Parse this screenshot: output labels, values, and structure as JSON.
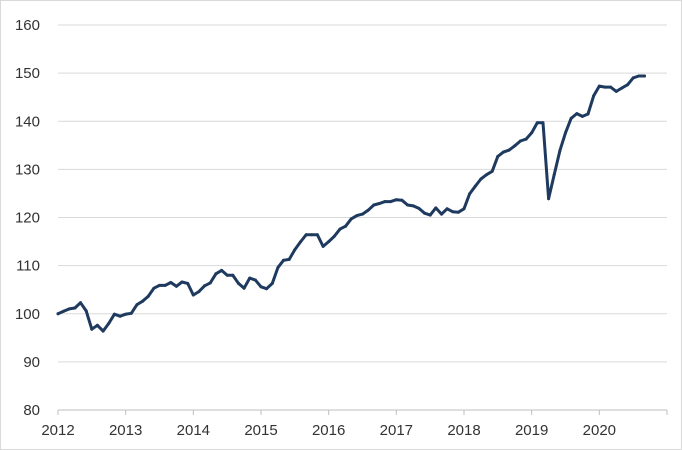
{
  "chart_data": {
    "type": "line",
    "title": "",
    "xlabel": "",
    "ylabel": "",
    "ylim": [
      80,
      160
    ],
    "xlim": [
      2012,
      2021
    ],
    "y_ticks": [
      80,
      90,
      100,
      110,
      120,
      130,
      140,
      150,
      160
    ],
    "x_tick_labels": [
      "2012",
      "2013",
      "2014",
      "2015",
      "2016",
      "2017",
      "2018",
      "2019",
      "2020"
    ],
    "grid": "horizontal",
    "legend": "none",
    "colors": {
      "line": "#1f3a5f",
      "grid": "#d9d9d9",
      "axis": "#bfbfbf"
    },
    "series": [
      {
        "x": [
          2012.0,
          2012.083,
          2012.167,
          2012.25,
          2012.333,
          2012.417,
          2012.5,
          2012.583,
          2012.667,
          2012.75,
          2012.833,
          2012.917,
          2013.0,
          2013.083,
          2013.167,
          2013.25,
          2013.333,
          2013.417,
          2013.5,
          2013.583,
          2013.667,
          2013.75,
          2013.833,
          2013.917,
          2014.0,
          2014.083,
          2014.167,
          2014.25,
          2014.333,
          2014.417,
          2014.5,
          2014.583,
          2014.667,
          2014.75,
          2014.833,
          2014.917,
          2015.0,
          2015.083,
          2015.167,
          2015.25,
          2015.333,
          2015.417,
          2015.5,
          2015.583,
          2015.667,
          2015.75,
          2015.833,
          2015.917,
          2016.0,
          2016.083,
          2016.167,
          2016.25,
          2016.333,
          2016.417,
          2016.5,
          2016.583,
          2016.667,
          2016.75,
          2016.833,
          2016.917,
          2017.0,
          2017.083,
          2017.167,
          2017.25,
          2017.333,
          2017.417,
          2017.5,
          2017.583,
          2017.667,
          2017.75,
          2017.833,
          2017.917,
          2018.0,
          2018.083,
          2018.167,
          2018.25,
          2018.333,
          2018.417,
          2018.5,
          2018.583,
          2018.667,
          2018.75,
          2018.833,
          2018.917,
          2019.0,
          2019.083,
          2019.167,
          2019.25,
          2019.333,
          2019.417,
          2019.5,
          2019.583,
          2019.667,
          2019.75,
          2019.833,
          2019.917,
          2020.0,
          2020.083,
          2020.167,
          2020.25,
          2020.333,
          2020.417,
          2020.5,
          2020.583,
          2020.667
        ],
        "y": [
          100.0,
          100.5,
          101.0,
          101.2,
          102.3,
          100.6,
          96.8,
          97.6,
          96.4,
          98.0,
          99.9,
          99.5,
          99.9,
          100.1,
          101.9,
          102.6,
          103.6,
          105.3,
          105.9,
          105.9,
          106.5,
          105.7,
          106.6,
          106.3,
          103.9,
          104.6,
          105.8,
          106.4,
          108.3,
          109.0,
          108.0,
          108.0,
          106.3,
          105.3,
          107.4,
          107.0,
          105.6,
          105.2,
          106.3,
          109.6,
          111.1,
          111.3,
          113.3,
          114.9,
          116.4,
          116.4,
          116.4,
          114.0,
          115.0,
          116.1,
          117.6,
          118.2,
          119.7,
          120.4,
          120.7,
          121.5,
          122.6,
          122.9,
          123.3,
          123.3,
          123.7,
          123.6,
          122.6,
          122.4,
          121.9,
          120.9,
          120.5,
          122.0,
          120.7,
          121.8,
          121.2,
          121.1,
          121.8,
          124.9,
          126.5,
          128.0,
          128.9,
          129.6,
          132.7,
          133.6,
          134.0,
          134.9,
          135.9,
          136.3,
          137.6,
          139.7,
          139.7,
          123.9,
          128.9,
          133.9,
          137.6,
          140.6,
          141.6,
          141.0,
          141.5,
          145.3,
          147.3,
          147.1,
          147.1,
          146.2,
          146.9,
          147.6,
          149.0,
          149.4,
          149.4
        ]
      }
    ]
  }
}
